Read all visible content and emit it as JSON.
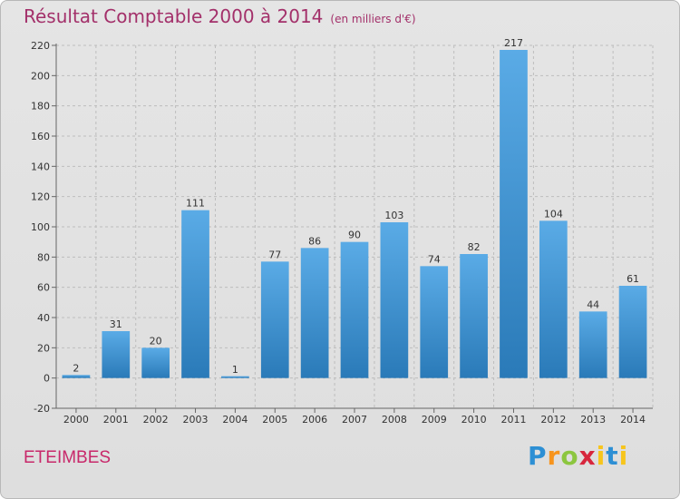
{
  "chart_data": {
    "type": "bar",
    "title": "Résultat Comptable 2000 à 2014",
    "subtitle": "(en milliers d'€)",
    "categories": [
      "2000",
      "2001",
      "2002",
      "2003",
      "2004",
      "2005",
      "2006",
      "2007",
      "2008",
      "2009",
      "2010",
      "2011",
      "2012",
      "2013",
      "2014"
    ],
    "values": [
      2,
      31,
      20,
      111,
      1,
      77,
      86,
      90,
      103,
      74,
      82,
      217,
      104,
      44,
      61
    ],
    "ylim": [
      -20,
      220
    ],
    "yticks": [
      -20,
      0,
      20,
      40,
      60,
      80,
      100,
      120,
      140,
      160,
      180,
      200,
      220
    ],
    "grid": true,
    "bar_color_top": "#5aabe6",
    "bar_color_bottom": "#2a7ab8"
  },
  "place_name": "ETEIMBES",
  "logo": {
    "letters": [
      "P",
      "r",
      "o",
      "x",
      "i",
      "t",
      "i"
    ]
  }
}
